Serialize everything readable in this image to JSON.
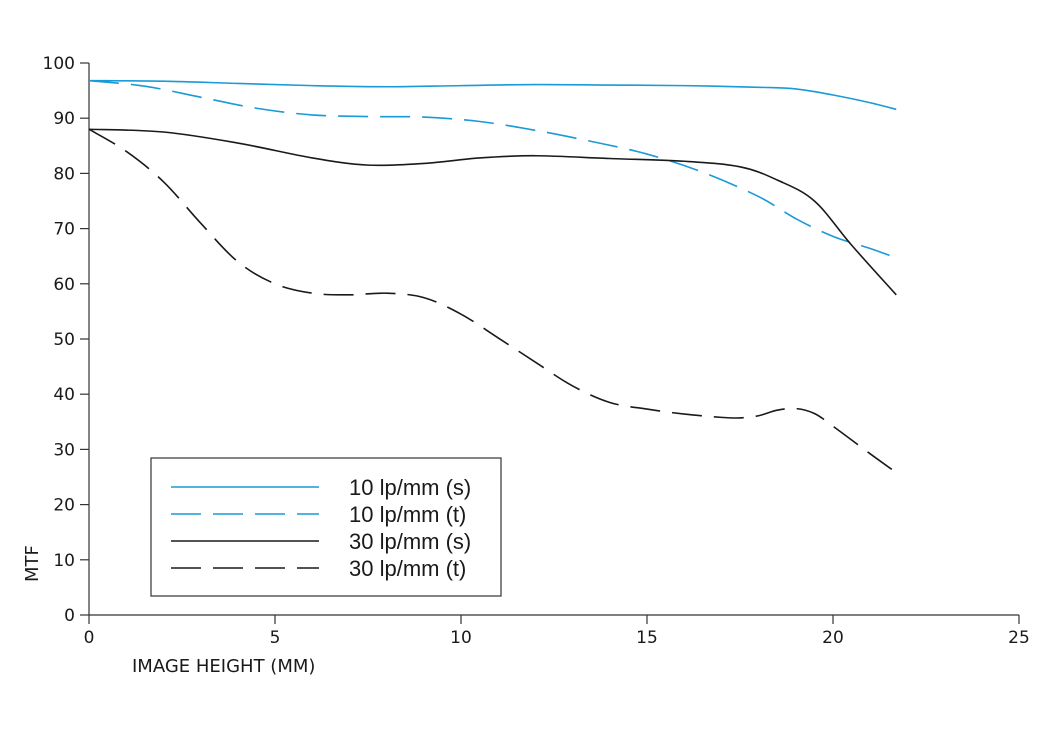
{
  "chart_data": {
    "type": "line",
    "title": "",
    "xlabel": "IMAGE HEIGHT (MM)",
    "ylabel": "MTF",
    "xlim": [
      0,
      25
    ],
    "ylim": [
      0,
      100
    ],
    "xticks": [
      0,
      5,
      10,
      15,
      20,
      25
    ],
    "yticks": [
      0,
      10,
      20,
      30,
      40,
      50,
      60,
      70,
      80,
      90,
      100
    ],
    "grid": false,
    "legend_position": "bottom-left",
    "series": [
      {
        "name": "10 lp/mm (s)",
        "color": "#1a9ad6",
        "style": "solid",
        "x": [
          0,
          2,
          4,
          6,
          8,
          10,
          12,
          14,
          16,
          18,
          19,
          20,
          21,
          21.7
        ],
        "y": [
          96.8,
          96.7,
          96.3,
          95.9,
          95.7,
          95.9,
          96.1,
          96.0,
          95.9,
          95.6,
          95.3,
          94.2,
          92.8,
          91.6
        ]
      },
      {
        "name": "10 lp/mm (t)",
        "color": "#1a9ad6",
        "style": "dashed",
        "x": [
          0,
          1.5,
          3,
          4.5,
          6,
          7.5,
          9,
          10.5,
          12,
          13.5,
          15,
          16.5,
          18,
          19,
          20,
          21,
          21.7
        ],
        "y": [
          96.8,
          95.8,
          93.8,
          91.8,
          90.6,
          90.3,
          90.2,
          89.4,
          87.8,
          85.8,
          83.5,
          80.2,
          75.8,
          71.8,
          68.6,
          66.4,
          64.7
        ]
      },
      {
        "name": "30 lp/mm (s)",
        "color": "#1a1a1a",
        "style": "solid",
        "x": [
          0,
          2,
          4,
          6,
          7.5,
          9,
          10.5,
          12,
          14,
          16,
          17.5,
          18.5,
          19.5,
          20.5,
          21.7
        ],
        "y": [
          88.0,
          87.5,
          85.5,
          82.8,
          81.5,
          81.8,
          82.8,
          83.2,
          82.7,
          82.2,
          81.2,
          78.8,
          75.0,
          67.0,
          58.0
        ]
      },
      {
        "name": "30 lp/mm (t)",
        "color": "#1a1a1a",
        "style": "dashed",
        "x": [
          0,
          1,
          2,
          3,
          4,
          5,
          6,
          7,
          8,
          9,
          10,
          11,
          12,
          13,
          14,
          15,
          16,
          17,
          17.5,
          18,
          18.5,
          19,
          19.5,
          20,
          21,
          21.7
        ],
        "y": [
          88.0,
          84.0,
          78.5,
          71.0,
          64.0,
          60.0,
          58.3,
          58.0,
          58.3,
          57.5,
          54.5,
          50.2,
          45.8,
          41.5,
          38.5,
          37.3,
          36.4,
          35.8,
          35.7,
          36.1,
          37.1,
          37.4,
          36.5,
          34.2,
          29.2,
          25.8
        ]
      }
    ]
  }
}
